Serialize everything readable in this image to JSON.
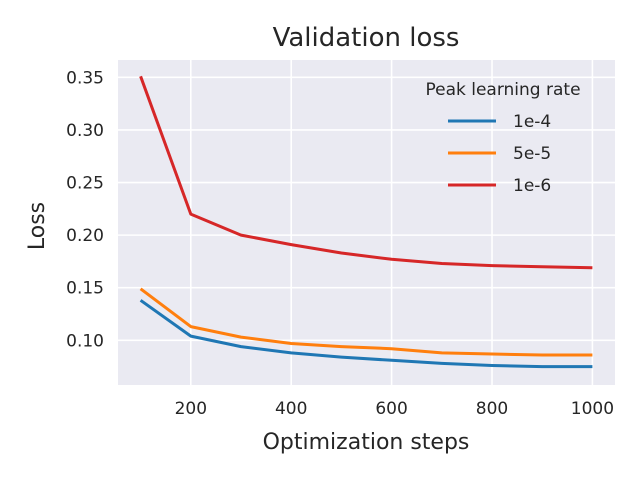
{
  "chart_data": {
    "type": "line",
    "title": "Validation loss",
    "xlabel": "Optimization steps",
    "ylabel": "Loss",
    "xlim": [
      55,
      1045
    ],
    "ylim": [
      0.0575,
      0.3665
    ],
    "x_ticks": [
      200,
      400,
      600,
      800,
      1000
    ],
    "y_ticks": [
      0.1,
      0.15,
      0.2,
      0.25,
      0.3,
      0.35
    ],
    "grid": true,
    "legend": {
      "title": "Peak learning rate",
      "placement": "top-right"
    },
    "x": [
      100,
      200,
      300,
      400,
      500,
      600,
      700,
      800,
      900,
      1000
    ],
    "series": [
      {
        "name": "1e-4",
        "color": "#1f77b4",
        "values": [
          0.138,
          0.104,
          0.094,
          0.088,
          0.084,
          0.081,
          0.078,
          0.076,
          0.075,
          0.075
        ]
      },
      {
        "name": "5e-5",
        "color": "#ff7f0e",
        "values": [
          0.149,
          0.113,
          0.103,
          0.097,
          0.094,
          0.092,
          0.088,
          0.087,
          0.086,
          0.086
        ]
      },
      {
        "name": "1e-6",
        "color": "#d62728",
        "values": [
          0.351,
          0.22,
          0.2,
          0.191,
          0.183,
          0.177,
          0.173,
          0.171,
          0.17,
          0.169
        ]
      }
    ]
  }
}
